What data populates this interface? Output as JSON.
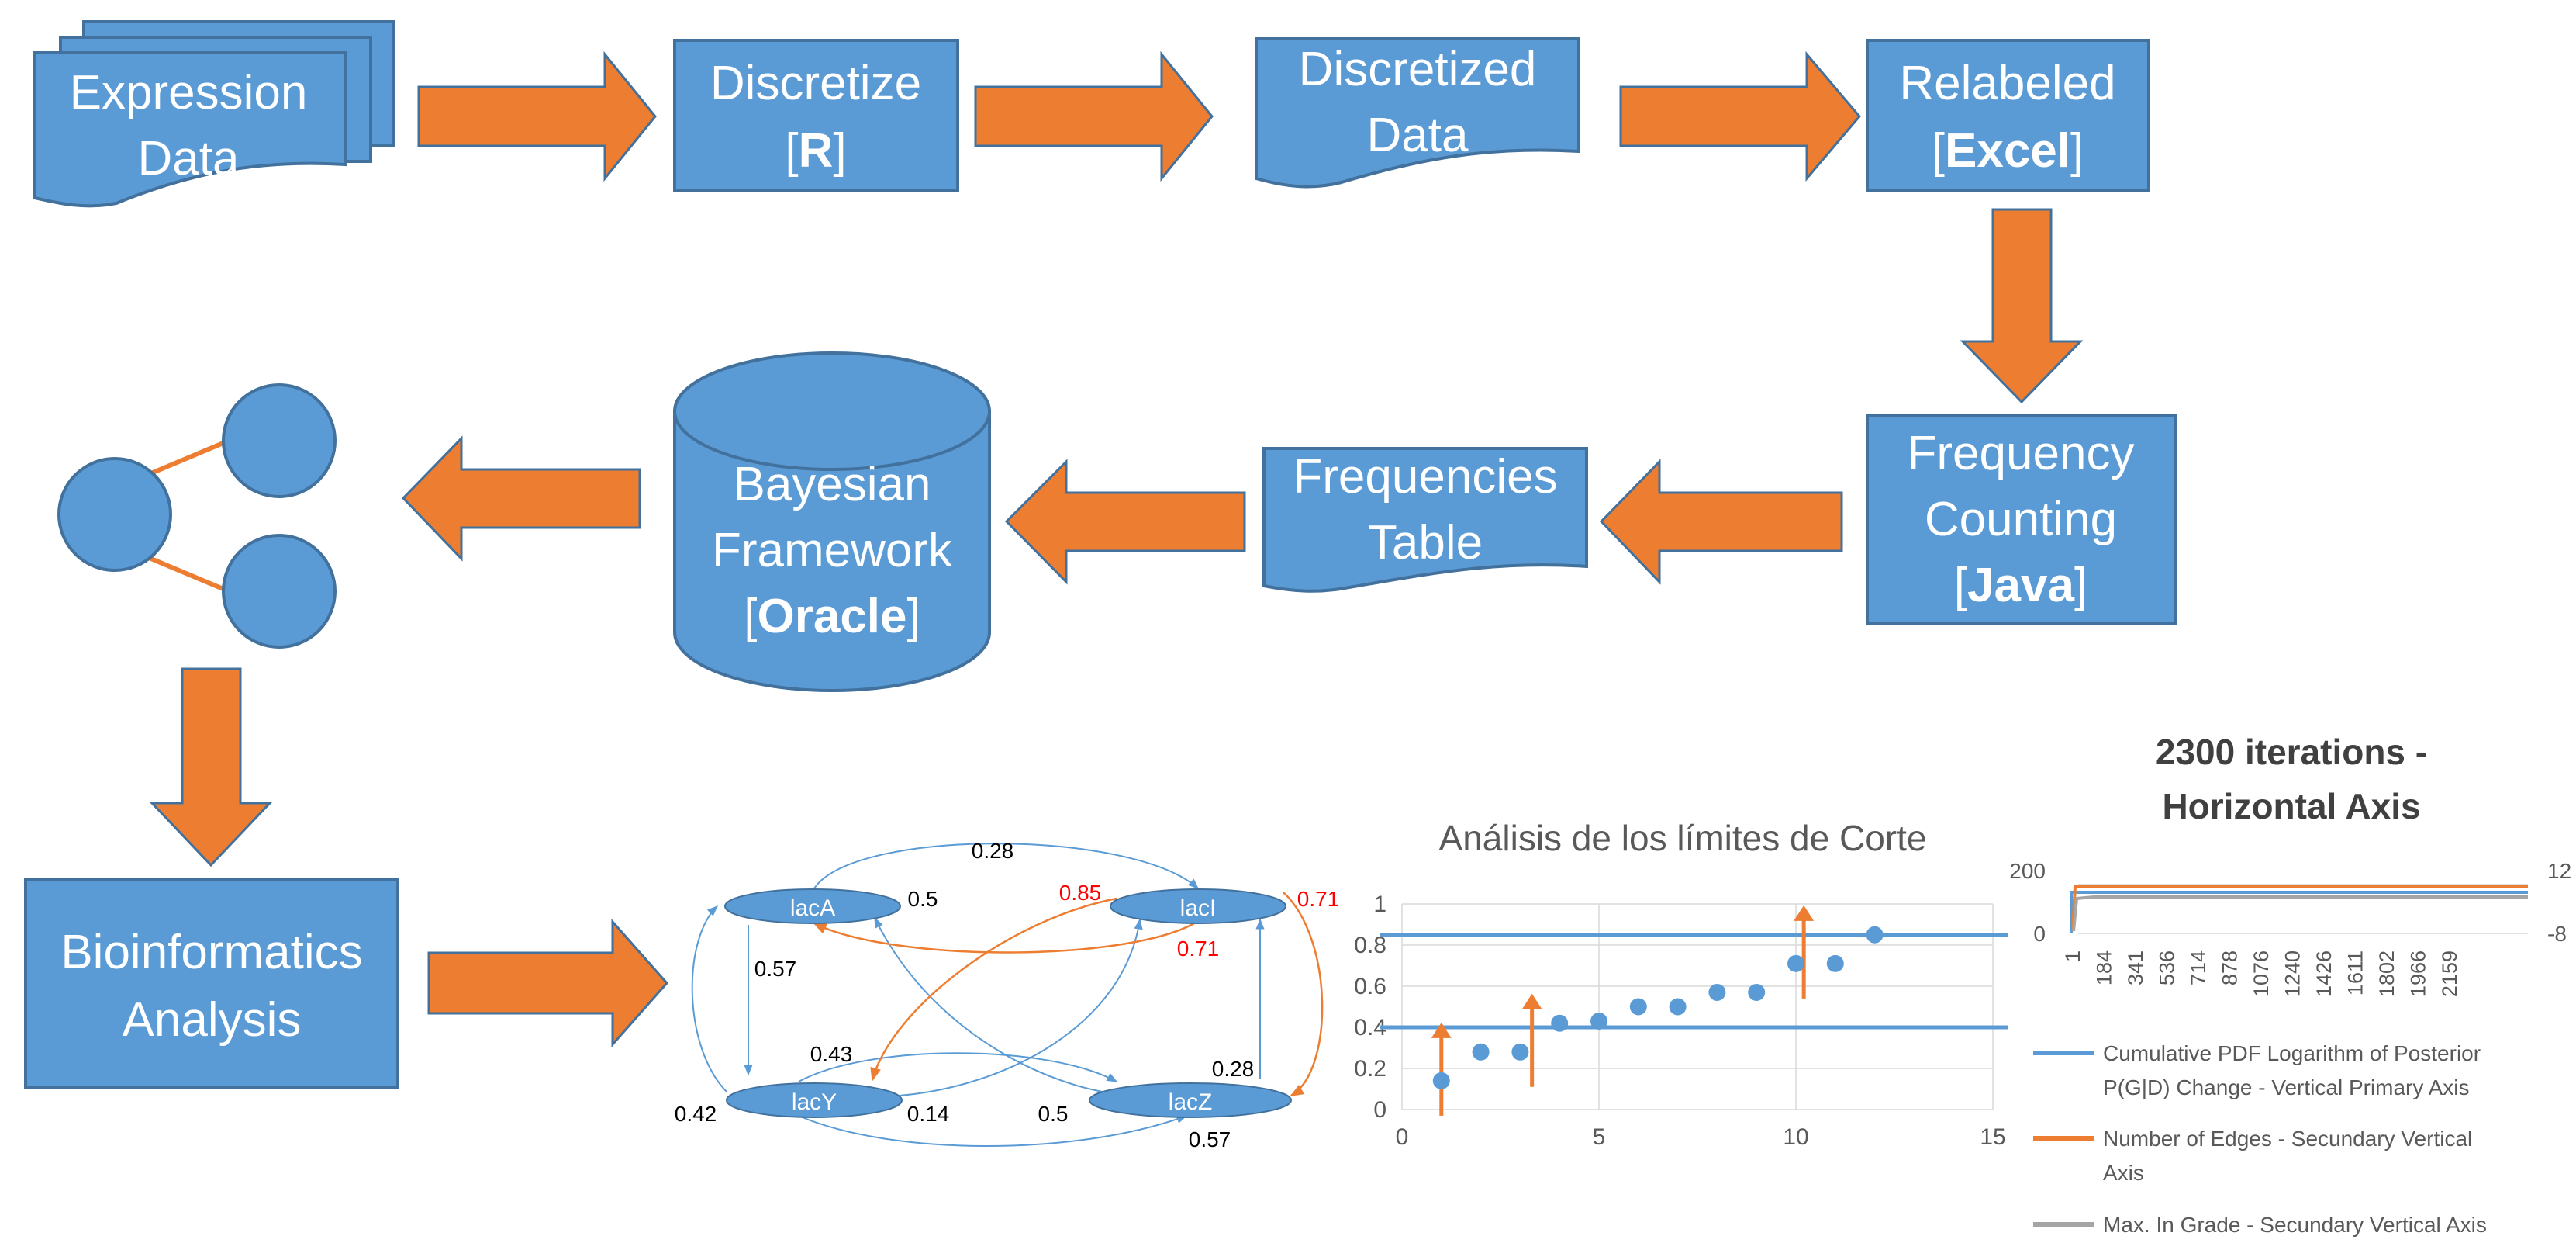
{
  "colors": {
    "box_fill": "#5b9bd5",
    "box_stroke": "#41719c",
    "arrow_fill": "#ed7d31",
    "arrow_stroke": "#41719c",
    "text_light": "#ffffff",
    "text_dark": "#000000",
    "highlight": "#ff0000",
    "edge_blue": "#5b9bd5",
    "edge_orange": "#ed7d31",
    "gray_series": "#a5a5a5",
    "axis_text": "#595959"
  },
  "pipeline": {
    "expression_data": {
      "line1": "Expression",
      "line2": "Data"
    },
    "discretize": {
      "line1": "Discretize",
      "line2_open": "[",
      "line2_bold": "R",
      "line2_close": "]"
    },
    "discretized_data": {
      "line1": "Discretized",
      "line2": "Data"
    },
    "relabeled": {
      "line1": "Relabeled",
      "line2_open": "[",
      "line2_bold": "Excel",
      "line2_close": "]"
    },
    "frequency_counting": {
      "line1": "Frequency",
      "line2": "Counting",
      "line3_open": "[",
      "line3_bold": "Java",
      "line3_close": "]"
    },
    "frequencies_table": {
      "line1": "Frequencies",
      "line2": "Table"
    },
    "bayesian_framework": {
      "line1": "Bayesian",
      "line2": "Framework",
      "line3_open": "[",
      "line3_bold": "Oracle",
      "line3_close": "]"
    },
    "bioinformatics": {
      "line1": "Bioinformatics",
      "line2": "Analysis"
    }
  },
  "network": {
    "nodes": {
      "lacA": "lacA",
      "lacI": "lacI",
      "lacY": "lacY",
      "lacZ": "lacZ"
    },
    "edge_labels": {
      "top": "0.28",
      "a_right": "0.5",
      "i_left_red": "0.85",
      "i_right_red": "0.71",
      "i_below_red": "0.71",
      "a_down": "0.57",
      "mid": "0.43",
      "z_up": "0.28",
      "y_left": "0.42",
      "y_right": "0.14",
      "z_left": "0.5",
      "z_below": "0.57"
    }
  },
  "scatter_chart": {
    "title": "Análisis de los límites de Corte",
    "x_ticks": [
      "0",
      "5",
      "10",
      "15"
    ],
    "y_ticks": [
      "0",
      "0.2",
      "0.4",
      "0.6",
      "0.8",
      "1"
    ]
  },
  "line_chart": {
    "title_line1": "2300  iterations -",
    "title_line2": "Horizontal Axis",
    "y_left_ticks": [
      "200",
      "0"
    ],
    "y_right_ticks": [
      "12",
      "-8"
    ],
    "x_ticks": [
      "1",
      "184",
      "341",
      "536",
      "714",
      "878",
      "1076",
      "1240",
      "1426",
      "1611",
      "1802",
      "1966",
      "2159"
    ],
    "legend": {
      "s1_line1": "Cumulative PDF Logarithm of Posterior",
      "s1_line2": "P(G|D) Change - Vertical Primary Axis",
      "s2_line1": "Number of  Edges - Secundary Vertical",
      "s2_line2": "Axis",
      "s3_line1": "Max. In Grade - Secundary Vertical Axis"
    }
  },
  "chart_data": [
    {
      "type": "scatter",
      "title": "Análisis de los límites de Corte",
      "xlim": [
        0,
        15
      ],
      "ylim": [
        0,
        1
      ],
      "x_ticks": [
        0,
        5,
        10,
        15
      ],
      "y_ticks": [
        0,
        0.2,
        0.4,
        0.6,
        0.8,
        1
      ],
      "grid": true,
      "series": [
        {
          "x": [
            1,
            2,
            3,
            4,
            5,
            6,
            7,
            8,
            9,
            10,
            11,
            12
          ],
          "y": [
            0.14,
            0.28,
            0.28,
            0.42,
            0.43,
            0.5,
            0.5,
            0.57,
            0.57,
            0.71,
            0.71,
            0.85
          ]
        }
      ],
      "reference_lines_y": [
        0.4,
        0.85
      ],
      "cut_arrows_x": [
        1,
        3.3,
        10.2
      ]
    },
    {
      "type": "line",
      "title": "2300  iterations - Horizontal Axis",
      "x_ticks": [
        1,
        184,
        341,
        536,
        714,
        878,
        1076,
        1240,
        1426,
        1611,
        1802,
        1966,
        2159
      ],
      "y_left_ticks": [
        200,
        0
      ],
      "y_right_ticks": [
        12,
        -8
      ],
      "legend_position": "bottom",
      "series": [
        {
          "name": "Cumulative PDF Logarithm of Posterior P(G|D) Change - Vertical Primary Axis",
          "color": "#5b9bd5"
        },
        {
          "name": "Number of  Edges - Secundary Vertical Axis",
          "color": "#ed7d31"
        },
        {
          "name": "Max. In Grade - Secundary Vertical Axis",
          "color": "#a5a5a5"
        }
      ]
    }
  ]
}
